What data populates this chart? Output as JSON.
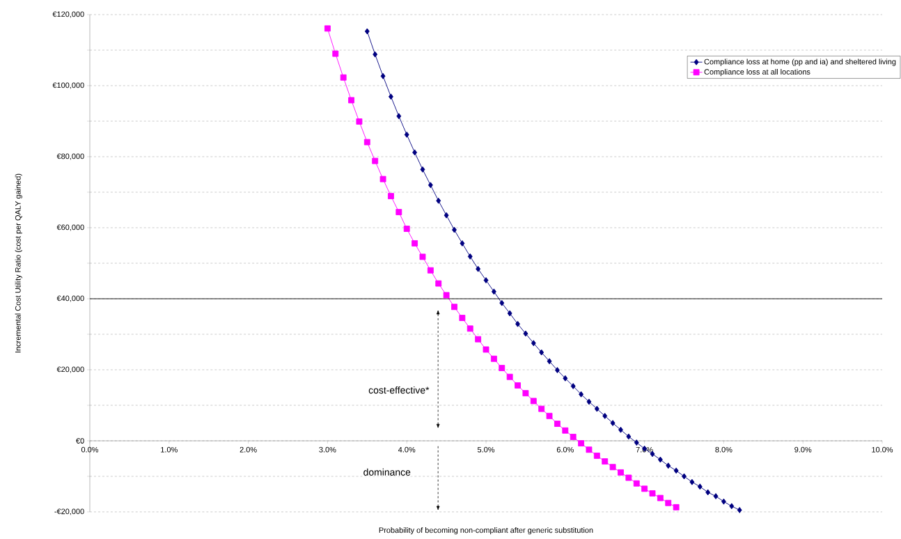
{
  "chart_data": {
    "type": "line",
    "xlabel": "Probability of becoming non-compliant after generic substitution",
    "ylabel": "Incremental Cost Utility Ratio (cost per QALY gained)",
    "xlim": [
      0,
      10
    ],
    "ylim": [
      -20000,
      120000
    ],
    "xticks": [
      {
        "value": 0,
        "label": "0.0%"
      },
      {
        "value": 1,
        "label": "1.0%"
      },
      {
        "value": 2,
        "label": "2.0%"
      },
      {
        "value": 3,
        "label": "3.0%"
      },
      {
        "value": 4,
        "label": "4.0%"
      },
      {
        "value": 5,
        "label": "5.0%"
      },
      {
        "value": 6,
        "label": "6.0%"
      },
      {
        "value": 7,
        "label": "7.0%"
      },
      {
        "value": 8,
        "label": "8.0%"
      },
      {
        "value": 9,
        "label": "9.0%"
      },
      {
        "value": 10,
        "label": "10.0%"
      }
    ],
    "yticks": [
      {
        "value": -20000,
        "label": "-€20,000"
      },
      {
        "value": -10000,
        "label": null
      },
      {
        "value": 0,
        "label": "€0"
      },
      {
        "value": 10000,
        "label": null
      },
      {
        "value": 20000,
        "label": "€20,000"
      },
      {
        "value": 30000,
        "label": null
      },
      {
        "value": 40000,
        "label": "€40,000"
      },
      {
        "value": 50000,
        "label": null
      },
      {
        "value": 60000,
        "label": "€60,000"
      },
      {
        "value": 70000,
        "label": null
      },
      {
        "value": 80000,
        "label": "€80,000"
      },
      {
        "value": 90000,
        "label": null
      },
      {
        "value": 100000,
        "label": "€100,000"
      },
      {
        "value": 110000,
        "label": null
      },
      {
        "value": 120000,
        "label": "€120,000"
      }
    ],
    "grid": "y",
    "legend": "top right",
    "line_style": "solid",
    "ref_lines": [
      {
        "axis": "y",
        "value": 40000,
        "color": "#000000"
      }
    ],
    "annotations": [
      "cost-effective*",
      "dominance"
    ],
    "series": [
      {
        "name": "Compliance loss at home (pp and ia) and sheltered living",
        "color": "#000080",
        "marker": "diamond",
        "x": [
          3.5,
          3.6,
          3.7,
          3.8,
          3.9,
          4.0,
          4.1,
          4.2,
          4.3,
          4.4,
          4.5,
          4.6,
          4.7,
          4.8,
          4.9,
          5.0,
          5.1,
          5.2,
          5.3,
          5.4,
          5.5,
          5.6,
          5.7,
          5.8,
          5.9,
          6.0,
          6.1,
          6.2,
          6.3,
          6.4,
          6.5,
          6.6,
          6.7,
          6.8,
          6.9,
          7.0,
          7.1,
          7.2,
          7.3,
          7.4,
          7.5,
          7.6,
          7.7,
          7.8,
          7.9,
          8.0,
          8.1,
          8.2
        ],
        "values": [
          115300,
          108800,
          102700,
          96900,
          91400,
          86200,
          81200,
          76400,
          72000,
          67600,
          63500,
          59400,
          55600,
          51900,
          48400,
          45200,
          42000,
          38800,
          35900,
          32900,
          30200,
          27500,
          24900,
          22400,
          19900,
          17600,
          15400,
          13100,
          11000,
          9000,
          7000,
          5000,
          3100,
          1200,
          -500,
          -2200,
          -3700,
          -5300,
          -7000,
          -8400,
          -10000,
          -11600,
          -12900,
          -14500,
          -15600,
          -17100,
          -18400,
          -19500
        ]
      },
      {
        "name": "Compliance loss at all locations",
        "color": "#ff00ff",
        "marker": "square",
        "x": [
          3.0,
          3.1,
          3.2,
          3.3,
          3.4,
          3.5,
          3.6,
          3.7,
          3.8,
          3.9,
          4.0,
          4.1,
          4.2,
          4.3,
          4.4,
          4.5,
          4.6,
          4.7,
          4.8,
          4.9,
          5.0,
          5.1,
          5.2,
          5.3,
          5.4,
          5.5,
          5.6,
          5.7,
          5.8,
          5.9,
          6.0,
          6.1,
          6.2,
          6.3,
          6.4,
          6.5,
          6.6,
          6.7,
          6.8,
          6.9,
          7.0,
          7.1,
          7.2,
          7.3,
          7.4
        ],
        "values": [
          116100,
          109000,
          102300,
          95900,
          89900,
          84100,
          78800,
          73700,
          68900,
          64400,
          59700,
          55600,
          51800,
          48000,
          44300,
          41000,
          37700,
          34600,
          31600,
          28600,
          25700,
          23100,
          20500,
          18000,
          15600,
          13400,
          11200,
          9000,
          7000,
          4800,
          2900,
          1100,
          -700,
          -2500,
          -4200,
          -5800,
          -7400,
          -8900,
          -10400,
          -12000,
          -13500,
          -14800,
          -16100,
          -17500,
          -18700
        ]
      }
    ]
  }
}
